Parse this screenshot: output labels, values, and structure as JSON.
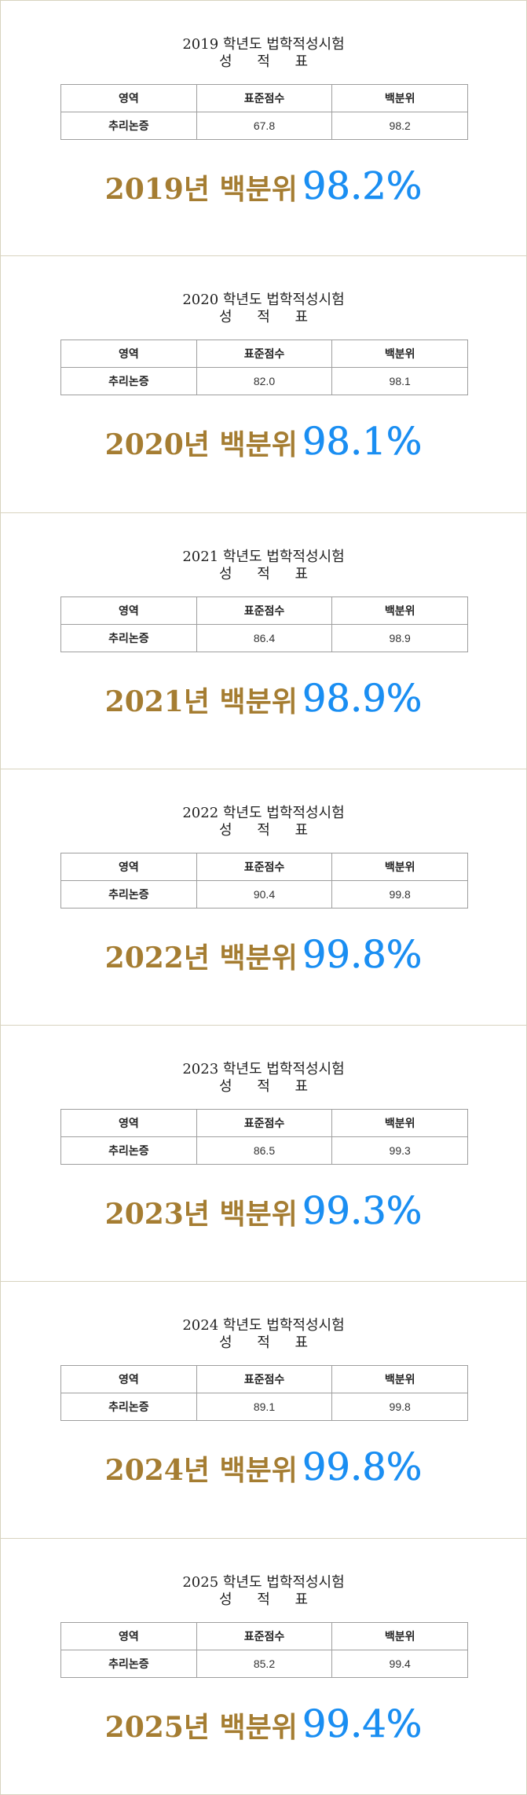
{
  "colors": {
    "label_gold": "#a57d32",
    "value_blue": "#1a8ef2",
    "card_border": "#d8d3bf",
    "table_border": "#9e9e9e"
  },
  "table_headers": {
    "area": "영역",
    "standard_score": "표준점수",
    "percentile": "백분위"
  },
  "subject": "추리논증",
  "subtitle": "성 적 표",
  "cards": [
    {
      "title": "2019 학년도 법학적성시험",
      "standard_score": "67.8",
      "percentile": "98.2",
      "result_label": "2019년 백분위",
      "result_value": "98.2%"
    },
    {
      "title": "2020 학년도 법학적성시험",
      "standard_score": "82.0",
      "percentile": "98.1",
      "result_label": "2020년 백분위",
      "result_value": "98.1%"
    },
    {
      "title": "2021 학년도 법학적성시험",
      "standard_score": "86.4",
      "percentile": "98.9",
      "result_label": "2021년 백분위",
      "result_value": "98.9%"
    },
    {
      "title": "2022 학년도 법학적성시험",
      "standard_score": "90.4",
      "percentile": "99.8",
      "result_label": "2022년 백분위",
      "result_value": "99.8%"
    },
    {
      "title": "2023 학년도 법학적성시험",
      "standard_score": "86.5",
      "percentile": "99.3",
      "result_label": "2023년 백분위",
      "result_value": "99.3%"
    },
    {
      "title": "2024 학년도 법학적성시험",
      "standard_score": "89.1",
      "percentile": "99.8",
      "result_label": "2024년 백분위",
      "result_value": "99.8%"
    },
    {
      "title": "2025 학년도 법학적성시험",
      "standard_score": "85.2",
      "percentile": "99.4",
      "result_label": "2025년 백분위",
      "result_value": "99.4%"
    }
  ]
}
